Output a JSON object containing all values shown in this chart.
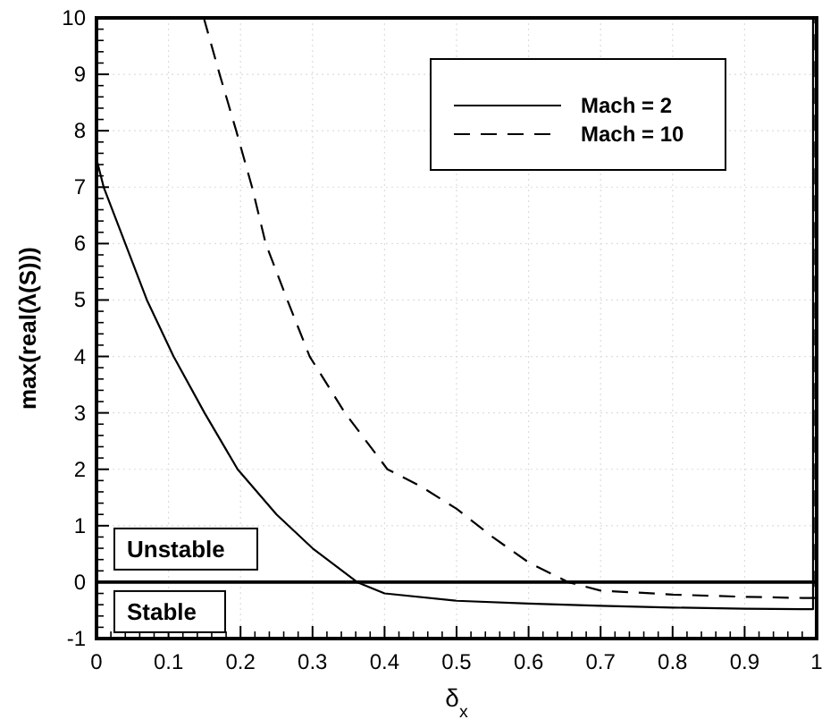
{
  "chart_data": {
    "type": "line",
    "xlabel": "δ$_{x}$",
    "ylabel": "max(real(λ(S)))",
    "xlim": [
      0,
      1
    ],
    "ylim": [
      -1,
      10
    ],
    "xticks": [
      0,
      0.1,
      0.2,
      0.3,
      0.4,
      0.5,
      0.6,
      0.7,
      0.8,
      0.9,
      1
    ],
    "yticks": [
      -1,
      0,
      1,
      2,
      3,
      4,
      5,
      6,
      7,
      8,
      9,
      10
    ],
    "grid": true,
    "legend": "top right",
    "ref_lines": [
      {
        "axis": "y",
        "value": 0
      }
    ],
    "annotations": [
      "Unstable",
      "Stable"
    ],
    "series": [
      {
        "name": "Mach = 2",
        "color": "#000000",
        "line_style": "solid",
        "x": [
          0,
          0.01,
          0.04,
          0.07,
          0.107,
          0.15,
          0.196,
          0.25,
          0.3,
          0.362,
          0.4,
          0.5,
          0.6,
          0.7,
          0.8,
          0.9,
          0.98,
          0.995,
          0.995
        ],
        "values": [
          7.5,
          7,
          6,
          5,
          4,
          3,
          2,
          1.2,
          0.6,
          0,
          -0.2,
          -0.33,
          -0.38,
          -0.42,
          -0.45,
          -0.47,
          -0.48,
          -0.48,
          10
        ]
      },
      {
        "name": "Mach = 10",
        "color": "#000000",
        "line_style": "dashed",
        "x": [
          0.149,
          0.171,
          0.194,
          0.216,
          0.235,
          0.265,
          0.296,
          0.345,
          0.404,
          0.45,
          0.5,
          0.55,
          0.6,
          0.655,
          0.7,
          0.8,
          0.9,
          0.98,
          0.998,
          0.998
        ],
        "values": [
          10,
          9,
          8,
          7,
          6,
          5,
          4,
          3,
          2,
          1.7,
          1.3,
          0.8,
          0.35,
          0,
          -0.15,
          -0.22,
          -0.26,
          -0.28,
          -0.28,
          10
        ]
      }
    ]
  }
}
